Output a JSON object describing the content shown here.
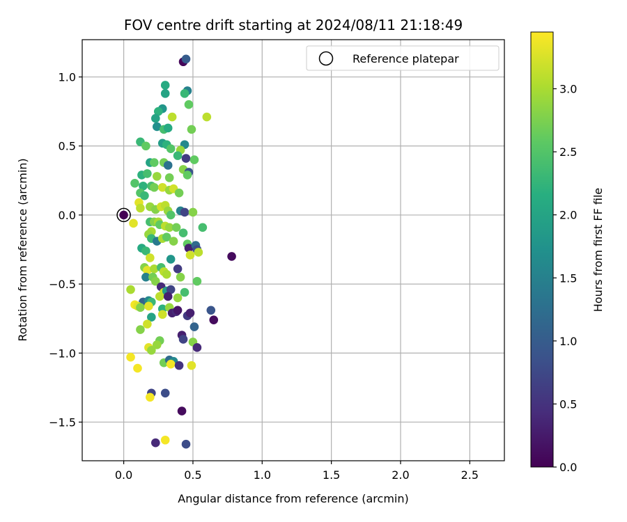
{
  "chart_data": {
    "type": "scatter",
    "title": "FOV centre drift starting at 2024/08/11 21:18:49",
    "xlabel": "Angular distance from reference (arcmin)",
    "ylabel": "Rotation from reference (arcmin)",
    "xlim": [
      -0.3,
      2.75
    ],
    "ylim": [
      -1.78,
      1.27
    ],
    "xticks": [
      0.0,
      0.5,
      1.0,
      1.5,
      2.0,
      2.5
    ],
    "xtick_labels": [
      "0.0",
      "0.5",
      "1.0",
      "1.5",
      "2.0",
      "2.5"
    ],
    "yticks": [
      1.0,
      0.5,
      0.0,
      -0.5,
      -1.0,
      -1.5
    ],
    "ytick_labels": [
      "1.0",
      "0.5",
      "0.0",
      "−0.5",
      "−1.0",
      "−1.5"
    ],
    "grid": true,
    "legend": {
      "position": "top-right",
      "label": "Reference platepar"
    },
    "reference_point": {
      "x": 0.0,
      "y": 0.0
    },
    "colorbar": {
      "label": "Hours from first FF file",
      "range": [
        0.0,
        3.45
      ],
      "ticks": [
        0.0,
        0.5,
        1.0,
        1.5,
        2.0,
        2.5,
        3.0
      ],
      "tick_labels": [
        "0.0",
        "0.5",
        "1.0",
        "1.5",
        "2.0",
        "2.5",
        "3.0"
      ],
      "colormap": "viridis"
    },
    "points": [
      {
        "x": 0.43,
        "y": 1.11,
        "h": 0.05
      },
      {
        "x": 0.45,
        "y": 1.13,
        "h": 1.0
      },
      {
        "x": 0.3,
        "y": 0.94,
        "h": 2.1
      },
      {
        "x": 0.46,
        "y": 0.9,
        "h": 1.5
      },
      {
        "x": 0.3,
        "y": 0.88,
        "h": 2.0
      },
      {
        "x": 0.44,
        "y": 0.88,
        "h": 2.3
      },
      {
        "x": 0.47,
        "y": 0.8,
        "h": 2.6
      },
      {
        "x": 0.28,
        "y": 0.77,
        "h": 1.8
      },
      {
        "x": 0.25,
        "y": 0.75,
        "h": 2.2
      },
      {
        "x": 0.23,
        "y": 0.7,
        "h": 2.0
      },
      {
        "x": 0.35,
        "y": 0.71,
        "h": 3.1
      },
      {
        "x": 0.6,
        "y": 0.71,
        "h": 3.1
      },
      {
        "x": 0.24,
        "y": 0.64,
        "h": 1.7
      },
      {
        "x": 0.29,
        "y": 0.62,
        "h": 2.4
      },
      {
        "x": 0.32,
        "y": 0.63,
        "h": 2.1
      },
      {
        "x": 0.49,
        "y": 0.62,
        "h": 2.7
      },
      {
        "x": 0.12,
        "y": 0.53,
        "h": 2.3
      },
      {
        "x": 0.16,
        "y": 0.5,
        "h": 2.6
      },
      {
        "x": 0.28,
        "y": 0.52,
        "h": 1.9
      },
      {
        "x": 0.31,
        "y": 0.51,
        "h": 2.2
      },
      {
        "x": 0.34,
        "y": 0.48,
        "h": 2.5
      },
      {
        "x": 0.44,
        "y": 0.51,
        "h": 1.6
      },
      {
        "x": 0.41,
        "y": 0.47,
        "h": 2.9
      },
      {
        "x": 0.39,
        "y": 0.43,
        "h": 2.3
      },
      {
        "x": 0.45,
        "y": 0.41,
        "h": 0.6
      },
      {
        "x": 0.51,
        "y": 0.4,
        "h": 2.6
      },
      {
        "x": 0.19,
        "y": 0.38,
        "h": 2.0
      },
      {
        "x": 0.22,
        "y": 0.38,
        "h": 2.6
      },
      {
        "x": 0.29,
        "y": 0.38,
        "h": 2.7
      },
      {
        "x": 0.32,
        "y": 0.36,
        "h": 1.3
      },
      {
        "x": 0.43,
        "y": 0.33,
        "h": 2.8
      },
      {
        "x": 0.47,
        "y": 0.31,
        "h": 0.9
      },
      {
        "x": 0.46,
        "y": 0.29,
        "h": 2.6
      },
      {
        "x": 0.13,
        "y": 0.29,
        "h": 2.2
      },
      {
        "x": 0.17,
        "y": 0.3,
        "h": 2.4
      },
      {
        "x": 0.24,
        "y": 0.28,
        "h": 2.9
      },
      {
        "x": 0.33,
        "y": 0.27,
        "h": 2.7
      },
      {
        "x": 0.08,
        "y": 0.23,
        "h": 2.5
      },
      {
        "x": 0.14,
        "y": 0.21,
        "h": 2.2
      },
      {
        "x": 0.2,
        "y": 0.21,
        "h": 2.4
      },
      {
        "x": 0.22,
        "y": 0.2,
        "h": 2.7
      },
      {
        "x": 0.28,
        "y": 0.2,
        "h": 3.2
      },
      {
        "x": 0.33,
        "y": 0.18,
        "h": 2.9
      },
      {
        "x": 0.36,
        "y": 0.19,
        "h": 3.2
      },
      {
        "x": 0.4,
        "y": 0.16,
        "h": 2.7
      },
      {
        "x": 0.12,
        "y": 0.16,
        "h": 2.5
      },
      {
        "x": 0.15,
        "y": 0.14,
        "h": 2.3
      },
      {
        "x": 0.11,
        "y": 0.09,
        "h": 3.3
      },
      {
        "x": 0.12,
        "y": 0.05,
        "h": 3.1
      },
      {
        "x": 0.19,
        "y": 0.06,
        "h": 2.9
      },
      {
        "x": 0.23,
        "y": 0.04,
        "h": 2.8
      },
      {
        "x": 0.27,
        "y": 0.06,
        "h": 3.2
      },
      {
        "x": 0.3,
        "y": 0.07,
        "h": 3.1
      },
      {
        "x": 0.32,
        "y": 0.03,
        "h": 2.9
      },
      {
        "x": 0.34,
        "y": 0.0,
        "h": 2.5
      },
      {
        "x": 0.41,
        "y": 0.03,
        "h": 1.5
      },
      {
        "x": 0.44,
        "y": 0.02,
        "h": 0.7
      },
      {
        "x": 0.5,
        "y": 0.02,
        "h": 2.8
      },
      {
        "x": 0.07,
        "y": -0.06,
        "h": 3.3
      },
      {
        "x": 0.19,
        "y": -0.05,
        "h": 2.4
      },
      {
        "x": 0.22,
        "y": -0.05,
        "h": 2.8
      },
      {
        "x": 0.25,
        "y": -0.05,
        "h": 3.0
      },
      {
        "x": 0.26,
        "y": -0.07,
        "h": 2.6
      },
      {
        "x": 0.3,
        "y": -0.08,
        "h": 3.1
      },
      {
        "x": 0.33,
        "y": -0.09,
        "h": 2.9
      },
      {
        "x": 0.38,
        "y": -0.09,
        "h": 2.7
      },
      {
        "x": 0.2,
        "y": -0.12,
        "h": 3.0
      },
      {
        "x": 0.18,
        "y": -0.14,
        "h": 2.9
      },
      {
        "x": 0.2,
        "y": -0.17,
        "h": 2.3
      },
      {
        "x": 0.24,
        "y": -0.19,
        "h": 1.4
      },
      {
        "x": 0.28,
        "y": -0.17,
        "h": 3.0
      },
      {
        "x": 0.31,
        "y": -0.16,
        "h": 2.6
      },
      {
        "x": 0.36,
        "y": -0.19,
        "h": 2.8
      },
      {
        "x": 0.43,
        "y": -0.13,
        "h": 2.4
      },
      {
        "x": 0.57,
        "y": -0.09,
        "h": 2.4
      },
      {
        "x": 0.46,
        "y": -0.21,
        "h": 2.6
      },
      {
        "x": 0.47,
        "y": -0.24,
        "h": 0.3
      },
      {
        "x": 0.52,
        "y": -0.22,
        "h": 1.2
      },
      {
        "x": 0.53,
        "y": -0.25,
        "h": 0.8
      },
      {
        "x": 0.54,
        "y": -0.27,
        "h": 3.1
      },
      {
        "x": 0.78,
        "y": -0.3,
        "h": 0.1
      },
      {
        "x": 0.13,
        "y": -0.24,
        "h": 2.1
      },
      {
        "x": 0.16,
        "y": -0.26,
        "h": 2.3
      },
      {
        "x": 0.19,
        "y": -0.31,
        "h": 3.2
      },
      {
        "x": 0.34,
        "y": -0.32,
        "h": 1.8
      },
      {
        "x": 0.48,
        "y": -0.29,
        "h": 3.2
      },
      {
        "x": 0.15,
        "y": -0.38,
        "h": 2.8
      },
      {
        "x": 0.17,
        "y": -0.4,
        "h": 3.3
      },
      {
        "x": 0.22,
        "y": -0.39,
        "h": 3.0
      },
      {
        "x": 0.27,
        "y": -0.38,
        "h": 2.4
      },
      {
        "x": 0.29,
        "y": -0.41,
        "h": 3.1
      },
      {
        "x": 0.31,
        "y": -0.43,
        "h": 3.0
      },
      {
        "x": 0.39,
        "y": -0.39,
        "h": 0.6
      },
      {
        "x": 0.16,
        "y": -0.45,
        "h": 1.5
      },
      {
        "x": 0.21,
        "y": -0.45,
        "h": 2.7
      },
      {
        "x": 0.23,
        "y": -0.48,
        "h": 2.8
      },
      {
        "x": 0.27,
        "y": -0.52,
        "h": 0.4
      },
      {
        "x": 0.41,
        "y": -0.45,
        "h": 2.8
      },
      {
        "x": 0.53,
        "y": -0.48,
        "h": 2.6
      },
      {
        "x": 0.05,
        "y": -0.54,
        "h": 3.0
      },
      {
        "x": 0.29,
        "y": -0.56,
        "h": 3.2
      },
      {
        "x": 0.31,
        "y": -0.55,
        "h": 1.9
      },
      {
        "x": 0.34,
        "y": -0.54,
        "h": 0.7
      },
      {
        "x": 0.44,
        "y": -0.56,
        "h": 2.4
      },
      {
        "x": 0.14,
        "y": -0.63,
        "h": 1.1
      },
      {
        "x": 0.18,
        "y": -0.62,
        "h": 1.6
      },
      {
        "x": 0.2,
        "y": -0.63,
        "h": 2.3
      },
      {
        "x": 0.26,
        "y": -0.59,
        "h": 3.1
      },
      {
        "x": 0.32,
        "y": -0.59,
        "h": 0.3
      },
      {
        "x": 0.39,
        "y": -0.6,
        "h": 2.9
      },
      {
        "x": 0.08,
        "y": -0.65,
        "h": 3.4
      },
      {
        "x": 0.1,
        "y": -0.66,
        "h": 3.3
      },
      {
        "x": 0.12,
        "y": -0.67,
        "h": 2.8
      },
      {
        "x": 0.18,
        "y": -0.66,
        "h": 3.3
      },
      {
        "x": 0.28,
        "y": -0.68,
        "h": 2.2
      },
      {
        "x": 0.33,
        "y": -0.67,
        "h": 2.9
      },
      {
        "x": 0.35,
        "y": -0.71,
        "h": 0.3
      },
      {
        "x": 0.38,
        "y": -0.7,
        "h": 0.4
      },
      {
        "x": 0.39,
        "y": -0.69,
        "h": 0.2
      },
      {
        "x": 0.28,
        "y": -0.72,
        "h": 3.2
      },
      {
        "x": 0.2,
        "y": -0.74,
        "h": 2.0
      },
      {
        "x": 0.46,
        "y": -0.73,
        "h": 0.6
      },
      {
        "x": 0.48,
        "y": -0.71,
        "h": 0.3
      },
      {
        "x": 0.63,
        "y": -0.69,
        "h": 0.9
      },
      {
        "x": 0.65,
        "y": -0.76,
        "h": 0.1
      },
      {
        "x": 0.17,
        "y": -0.79,
        "h": 3.2
      },
      {
        "x": 0.12,
        "y": -0.83,
        "h": 2.8
      },
      {
        "x": 0.51,
        "y": -0.81,
        "h": 1.1
      },
      {
        "x": 0.42,
        "y": -0.87,
        "h": 0.3
      },
      {
        "x": 0.43,
        "y": -0.9,
        "h": 0.7
      },
      {
        "x": 0.26,
        "y": -0.91,
        "h": 2.7
      },
      {
        "x": 0.24,
        "y": -0.94,
        "h": 2.9
      },
      {
        "x": 0.18,
        "y": -0.96,
        "h": 3.3
      },
      {
        "x": 0.2,
        "y": -0.98,
        "h": 2.9
      },
      {
        "x": 0.5,
        "y": -0.92,
        "h": 2.8
      },
      {
        "x": 0.53,
        "y": -0.96,
        "h": 0.4
      },
      {
        "x": 0.05,
        "y": -1.03,
        "h": 3.4
      },
      {
        "x": 0.1,
        "y": -1.11,
        "h": 3.4
      },
      {
        "x": 0.29,
        "y": -1.07,
        "h": 2.7
      },
      {
        "x": 0.33,
        "y": -1.05,
        "h": 1.2
      },
      {
        "x": 0.36,
        "y": -1.06,
        "h": 1.6
      },
      {
        "x": 0.34,
        "y": -1.08,
        "h": 3.4
      },
      {
        "x": 0.4,
        "y": -1.09,
        "h": 0.5
      },
      {
        "x": 0.49,
        "y": -1.09,
        "h": 3.3
      },
      {
        "x": 0.2,
        "y": -1.29,
        "h": 0.7
      },
      {
        "x": 0.3,
        "y": -1.29,
        "h": 0.8
      },
      {
        "x": 0.19,
        "y": -1.32,
        "h": 3.4
      },
      {
        "x": 0.42,
        "y": -1.42,
        "h": 0.1
      },
      {
        "x": 0.3,
        "y": -1.63,
        "h": 3.4
      },
      {
        "x": 0.23,
        "y": -1.65,
        "h": 0.4
      },
      {
        "x": 0.45,
        "y": -1.66,
        "h": 0.8
      }
    ]
  }
}
